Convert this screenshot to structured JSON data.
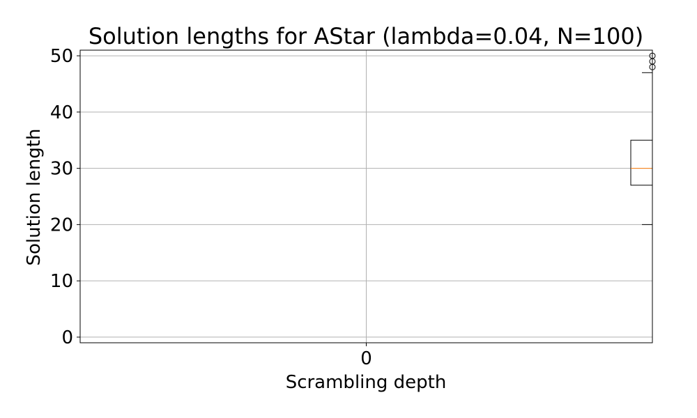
{
  "chart_data": {
    "type": "box",
    "title": "Solution lengths for AStar (lambda=0.04, N=100)",
    "xlabel": "Scrambling depth",
    "ylabel": "Solution length",
    "x_ticks": [
      "0"
    ],
    "y_ticks": [
      0,
      10,
      20,
      30,
      40,
      50
    ],
    "ylim": [
      -1,
      51
    ],
    "grid": true,
    "boxes": [
      {
        "category": "0",
        "whisker_low": 20,
        "q1": 27,
        "median": 30,
        "q3": 35,
        "whisker_high": 47,
        "outliers": [
          48,
          49,
          50
        ]
      }
    ],
    "colors": {
      "median": "#ff7f0e",
      "box": "#000000",
      "grid": "#b0b0b0"
    }
  }
}
